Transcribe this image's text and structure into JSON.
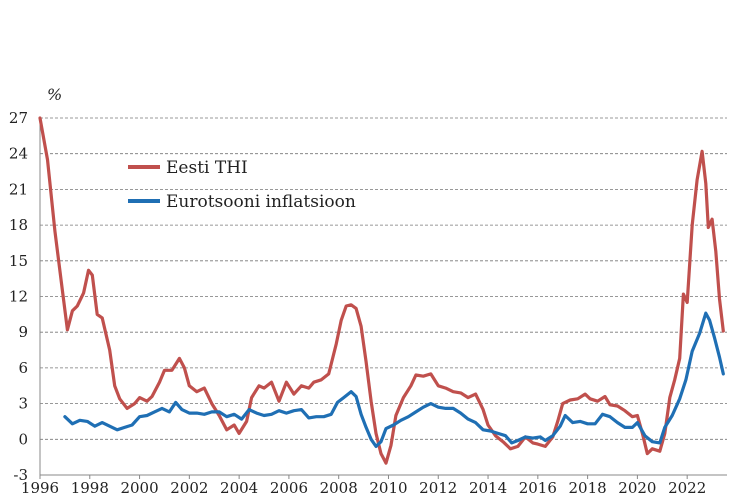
{
  "chart_data": {
    "type": "line",
    "title": "",
    "xlabel": "",
    "ylabel": "%",
    "xlim": [
      1996,
      2023.6
    ],
    "ylim": [
      -3,
      27
    ],
    "x_ticks": [
      "1996",
      "1998",
      "2000",
      "2002",
      "2004",
      "2006",
      "2008",
      "2010",
      "2012",
      "2014",
      "2016",
      "2018",
      "2020",
      "2022"
    ],
    "y_ticks": [
      "27",
      "24",
      "21",
      "18",
      "15",
      "12",
      "9",
      "6",
      "3",
      "0",
      "-3"
    ],
    "grid": "horizontal dashed",
    "legend": "upper-left",
    "series": [
      {
        "name": "Eesti THI",
        "color": "#c0504d",
        "points": [
          [
            1996.0,
            27.0
          ],
          [
            1996.3,
            23.5
          ],
          [
            1996.6,
            17.5
          ],
          [
            1996.9,
            12.5
          ],
          [
            1997.1,
            9.2
          ],
          [
            1997.3,
            10.8
          ],
          [
            1997.5,
            11.2
          ],
          [
            1997.75,
            12.3
          ],
          [
            1997.95,
            14.2
          ],
          [
            1998.1,
            13.8
          ],
          [
            1998.3,
            10.5
          ],
          [
            1998.5,
            10.2
          ],
          [
            1998.8,
            7.5
          ],
          [
            1999.0,
            4.5
          ],
          [
            1999.2,
            3.4
          ],
          [
            1999.5,
            2.6
          ],
          [
            1999.8,
            3.0
          ],
          [
            2000.0,
            3.5
          ],
          [
            2000.3,
            3.2
          ],
          [
            2000.5,
            3.6
          ],
          [
            2000.8,
            4.8
          ],
          [
            2001.0,
            5.8
          ],
          [
            2001.3,
            5.8
          ],
          [
            2001.6,
            6.8
          ],
          [
            2001.8,
            6.0
          ],
          [
            2002.0,
            4.5
          ],
          [
            2002.3,
            4.0
          ],
          [
            2002.6,
            4.3
          ],
          [
            2002.9,
            3.0
          ],
          [
            2003.2,
            2.0
          ],
          [
            2003.5,
            0.8
          ],
          [
            2003.8,
            1.2
          ],
          [
            2004.0,
            0.5
          ],
          [
            2004.3,
            1.5
          ],
          [
            2004.5,
            3.5
          ],
          [
            2004.8,
            4.5
          ],
          [
            2005.0,
            4.3
          ],
          [
            2005.3,
            4.8
          ],
          [
            2005.6,
            3.2
          ],
          [
            2005.9,
            4.8
          ],
          [
            2006.2,
            3.8
          ],
          [
            2006.5,
            4.5
          ],
          [
            2006.8,
            4.3
          ],
          [
            2007.0,
            4.8
          ],
          [
            2007.3,
            5.0
          ],
          [
            2007.6,
            5.5
          ],
          [
            2007.9,
            8.0
          ],
          [
            2008.1,
            10.0
          ],
          [
            2008.3,
            11.2
          ],
          [
            2008.5,
            11.3
          ],
          [
            2008.7,
            11.0
          ],
          [
            2008.9,
            9.5
          ],
          [
            2009.1,
            6.5
          ],
          [
            2009.3,
            3.2
          ],
          [
            2009.5,
            0.5
          ],
          [
            2009.7,
            -1.2
          ],
          [
            2009.9,
            -2.0
          ],
          [
            2010.1,
            -0.5
          ],
          [
            2010.3,
            2.0
          ],
          [
            2010.6,
            3.5
          ],
          [
            2010.9,
            4.5
          ],
          [
            2011.1,
            5.4
          ],
          [
            2011.4,
            5.3
          ],
          [
            2011.7,
            5.5
          ],
          [
            2012.0,
            4.5
          ],
          [
            2012.3,
            4.3
          ],
          [
            2012.6,
            4.0
          ],
          [
            2012.9,
            3.9
          ],
          [
            2013.2,
            3.5
          ],
          [
            2013.5,
            3.8
          ],
          [
            2013.8,
            2.5
          ],
          [
            2014.0,
            1.2
          ],
          [
            2014.3,
            0.3
          ],
          [
            2014.6,
            -0.2
          ],
          [
            2014.9,
            -0.8
          ],
          [
            2015.2,
            -0.6
          ],
          [
            2015.5,
            0.2
          ],
          [
            2015.8,
            -0.3
          ],
          [
            2016.0,
            -0.4
          ],
          [
            2016.3,
            -0.6
          ],
          [
            2016.6,
            0.2
          ],
          [
            2016.8,
            1.5
          ],
          [
            2017.0,
            3.0
          ],
          [
            2017.3,
            3.3
          ],
          [
            2017.6,
            3.4
          ],
          [
            2017.9,
            3.8
          ],
          [
            2018.1,
            3.4
          ],
          [
            2018.4,
            3.2
          ],
          [
            2018.7,
            3.6
          ],
          [
            2018.9,
            2.9
          ],
          [
            2019.2,
            2.8
          ],
          [
            2019.5,
            2.4
          ],
          [
            2019.8,
            1.9
          ],
          [
            2020.0,
            2.0
          ],
          [
            2020.2,
            0.5
          ],
          [
            2020.4,
            -1.2
          ],
          [
            2020.6,
            -0.8
          ],
          [
            2020.9,
            -1.0
          ],
          [
            2021.1,
            0.5
          ],
          [
            2021.3,
            3.5
          ],
          [
            2021.5,
            5.0
          ],
          [
            2021.7,
            6.8
          ],
          [
            2021.85,
            12.2
          ],
          [
            2022.0,
            11.5
          ],
          [
            2022.2,
            18.0
          ],
          [
            2022.4,
            21.8
          ],
          [
            2022.6,
            24.2
          ],
          [
            2022.75,
            21.5
          ],
          [
            2022.85,
            17.8
          ],
          [
            2023.0,
            18.5
          ],
          [
            2023.15,
            15.8
          ],
          [
            2023.3,
            11.8
          ],
          [
            2023.45,
            9.1
          ]
        ]
      },
      {
        "name": "Eurotsooni inflatsioon",
        "color": "#1f6fb4",
        "points": [
          [
            1997.0,
            1.9
          ],
          [
            1997.3,
            1.3
          ],
          [
            1997.6,
            1.6
          ],
          [
            1997.9,
            1.5
          ],
          [
            1998.2,
            1.1
          ],
          [
            1998.5,
            1.4
          ],
          [
            1998.8,
            1.1
          ],
          [
            1999.1,
            0.8
          ],
          [
            1999.4,
            1.0
          ],
          [
            1999.7,
            1.2
          ],
          [
            2000.0,
            1.9
          ],
          [
            2000.3,
            2.0
          ],
          [
            2000.6,
            2.3
          ],
          [
            2000.9,
            2.6
          ],
          [
            2001.2,
            2.3
          ],
          [
            2001.45,
            3.1
          ],
          [
            2001.7,
            2.5
          ],
          [
            2002.0,
            2.2
          ],
          [
            2002.3,
            2.2
          ],
          [
            2002.6,
            2.1
          ],
          [
            2002.9,
            2.3
          ],
          [
            2003.2,
            2.3
          ],
          [
            2003.5,
            1.9
          ],
          [
            2003.8,
            2.1
          ],
          [
            2004.1,
            1.7
          ],
          [
            2004.4,
            2.5
          ],
          [
            2004.7,
            2.2
          ],
          [
            2005.0,
            2.0
          ],
          [
            2005.3,
            2.1
          ],
          [
            2005.6,
            2.4
          ],
          [
            2005.9,
            2.2
          ],
          [
            2006.2,
            2.4
          ],
          [
            2006.5,
            2.5
          ],
          [
            2006.8,
            1.8
          ],
          [
            2007.1,
            1.9
          ],
          [
            2007.4,
            1.9
          ],
          [
            2007.7,
            2.1
          ],
          [
            2007.95,
            3.1
          ],
          [
            2008.2,
            3.5
          ],
          [
            2008.5,
            4.0
          ],
          [
            2008.7,
            3.6
          ],
          [
            2008.9,
            2.1
          ],
          [
            2009.1,
            1.0
          ],
          [
            2009.3,
            0.0
          ],
          [
            2009.5,
            -0.6
          ],
          [
            2009.7,
            -0.2
          ],
          [
            2009.9,
            0.9
          ],
          [
            2010.2,
            1.2
          ],
          [
            2010.5,
            1.6
          ],
          [
            2010.8,
            1.9
          ],
          [
            2011.1,
            2.3
          ],
          [
            2011.4,
            2.7
          ],
          [
            2011.7,
            3.0
          ],
          [
            2012.0,
            2.7
          ],
          [
            2012.3,
            2.6
          ],
          [
            2012.6,
            2.6
          ],
          [
            2012.9,
            2.2
          ],
          [
            2013.2,
            1.7
          ],
          [
            2013.5,
            1.4
          ],
          [
            2013.8,
            0.8
          ],
          [
            2014.1,
            0.7
          ],
          [
            2014.4,
            0.5
          ],
          [
            2014.7,
            0.3
          ],
          [
            2014.95,
            -0.3
          ],
          [
            2015.2,
            -0.1
          ],
          [
            2015.5,
            0.2
          ],
          [
            2015.8,
            0.1
          ],
          [
            2016.1,
            0.2
          ],
          [
            2016.3,
            -0.1
          ],
          [
            2016.6,
            0.3
          ],
          [
            2016.9,
            1.1
          ],
          [
            2017.1,
            2.0
          ],
          [
            2017.4,
            1.4
          ],
          [
            2017.7,
            1.5
          ],
          [
            2018.0,
            1.3
          ],
          [
            2018.3,
            1.3
          ],
          [
            2018.6,
            2.1
          ],
          [
            2018.9,
            1.9
          ],
          [
            2019.2,
            1.4
          ],
          [
            2019.5,
            1.0
          ],
          [
            2019.8,
            1.0
          ],
          [
            2020.0,
            1.4
          ],
          [
            2020.3,
            0.3
          ],
          [
            2020.6,
            -0.2
          ],
          [
            2020.9,
            -0.3
          ],
          [
            2021.1,
            1.0
          ],
          [
            2021.4,
            2.0
          ],
          [
            2021.7,
            3.4
          ],
          [
            2021.95,
            5.0
          ],
          [
            2022.2,
            7.4
          ],
          [
            2022.5,
            8.9
          ],
          [
            2022.75,
            10.6
          ],
          [
            2022.9,
            10.0
          ],
          [
            2023.1,
            8.5
          ],
          [
            2023.3,
            6.9
          ],
          [
            2023.45,
            5.5
          ]
        ]
      }
    ]
  }
}
